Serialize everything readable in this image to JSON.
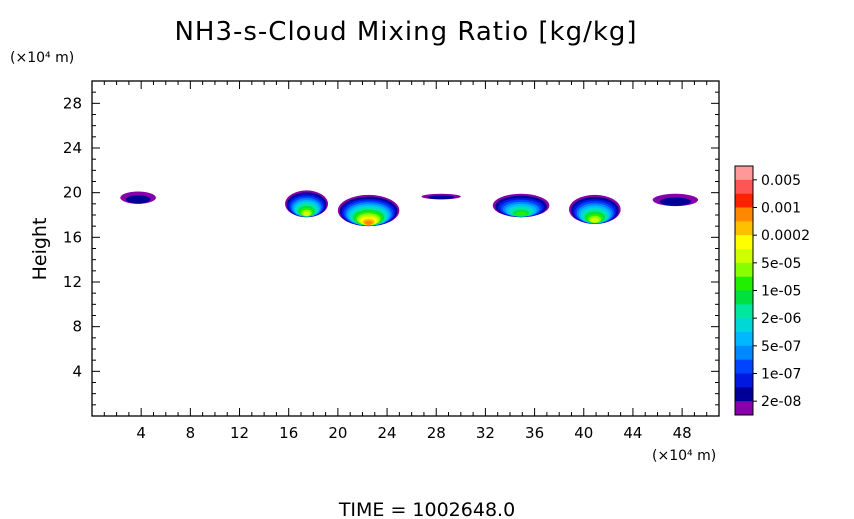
{
  "chart_data": {
    "type": "heatmap",
    "title": "NH3-s-Cloud Mixing Ratio [kg/kg]",
    "ylabel": "Height",
    "x_unit": "(×10⁴ m)",
    "y_unit": "(×10⁴ m)",
    "footer": "TIME = 1002648.0",
    "xlim": [
      0,
      51
    ],
    "ylim": [
      0,
      30
    ],
    "x_ticks": [
      4,
      8,
      12,
      16,
      20,
      24,
      28,
      32,
      36,
      40,
      44,
      48
    ],
    "y_ticks": [
      4,
      8,
      12,
      16,
      20,
      24,
      28
    ],
    "colorbar": {
      "labels": [
        "0.005",
        "0.001",
        "0.0002",
        "5e-05",
        "1e-05",
        "2e-06",
        "5e-07",
        "1e-07",
        "2e-08"
      ],
      "colors": [
        "#ff9999",
        "#ff5555",
        "#ff2200",
        "#ff8800",
        "#ffc000",
        "#ffff00",
        "#d0ff00",
        "#88ff00",
        "#22ee00",
        "#00e040",
        "#00e8a0",
        "#00d8d8",
        "#00b8ff",
        "#0088ff",
        "#0044ff",
        "#0018e0",
        "#000099",
        "#8800aa"
      ]
    },
    "cloud_regions": [
      {
        "x": [
          2.3,
          5.2
        ],
        "y": [
          19.0,
          20.1
        ],
        "max_level": "2e-08"
      },
      {
        "x": [
          15.7,
          19.2
        ],
        "y": [
          17.8,
          20.2
        ],
        "max_level": "5e-05"
      },
      {
        "x": [
          20.0,
          25.0
        ],
        "y": [
          17.0,
          19.8
        ],
        "max_level": "0.0002"
      },
      {
        "x": [
          26.8,
          30.0
        ],
        "y": [
          19.4,
          19.9
        ],
        "max_level": "2e-08"
      },
      {
        "x": [
          32.6,
          37.2
        ],
        "y": [
          17.8,
          19.9
        ],
        "max_level": "1e-05"
      },
      {
        "x": [
          38.8,
          43.0
        ],
        "y": [
          17.2,
          19.8
        ],
        "max_level": "5e-05"
      },
      {
        "x": [
          45.6,
          49.3
        ],
        "y": [
          18.8,
          19.9
        ],
        "max_level": "2e-08"
      }
    ]
  }
}
